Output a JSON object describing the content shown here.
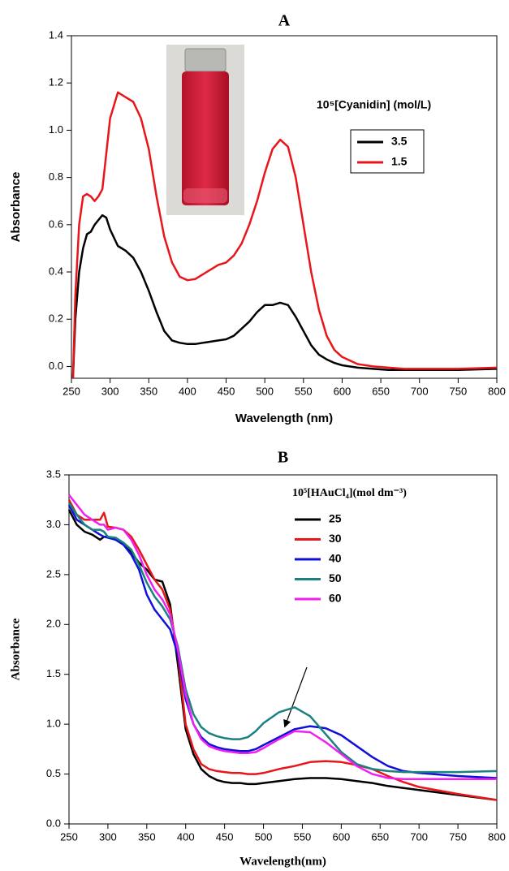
{
  "chart_data": [
    {
      "type": "line",
      "title": "A",
      "x_label": "Wavelength (nm)",
      "y_label": "Absorbance",
      "legend_title": "10⁵[Cyanidin] (mol/L)",
      "xlim": [
        250,
        800
      ],
      "xticks": [
        250,
        300,
        350,
        400,
        450,
        500,
        550,
        600,
        650,
        700,
        750,
        800
      ],
      "ylim": [
        -0.05,
        1.4
      ],
      "yticks": [
        {
          "value": 0,
          "label": "0.0"
        },
        0.2,
        0.4,
        0.6,
        0.8,
        {
          "value": 1,
          "label": "1.0"
        },
        1.2,
        1.4
      ],
      "x": [
        252,
        255,
        260,
        265,
        270,
        275,
        280,
        285,
        290,
        295,
        300,
        310,
        320,
        330,
        340,
        350,
        360,
        370,
        380,
        390,
        400,
        410,
        420,
        430,
        440,
        450,
        460,
        470,
        480,
        490,
        500,
        510,
        520,
        530,
        540,
        550,
        560,
        570,
        580,
        590,
        600,
        620,
        640,
        660,
        680,
        700,
        750,
        800
      ],
      "series": [
        {
          "name": "3.5",
          "color": "#000000",
          "values": [
            -0.05,
            0.2,
            0.4,
            0.5,
            0.56,
            0.57,
            0.6,
            0.62,
            0.64,
            0.63,
            0.58,
            0.51,
            0.49,
            0.46,
            0.4,
            0.32,
            0.23,
            0.15,
            0.11,
            0.1,
            0.095,
            0.095,
            0.1,
            0.105,
            0.11,
            0.115,
            0.13,
            0.16,
            0.19,
            0.23,
            0.26,
            0.26,
            0.27,
            0.26,
            0.21,
            0.15,
            0.09,
            0.05,
            0.03,
            0.015,
            0.005,
            -0.005,
            -0.01,
            -0.015,
            -0.015,
            -0.015,
            -0.015,
            -0.01
          ]
        },
        {
          "name": "1.5",
          "color": "#e8161b",
          "values": [
            -0.05,
            0.3,
            0.6,
            0.72,
            0.73,
            0.72,
            0.7,
            0.72,
            0.75,
            0.9,
            1.05,
            1.16,
            1.14,
            1.12,
            1.05,
            0.92,
            0.72,
            0.55,
            0.44,
            0.38,
            0.365,
            0.37,
            0.39,
            0.41,
            0.43,
            0.44,
            0.47,
            0.52,
            0.6,
            0.7,
            0.82,
            0.92,
            0.96,
            0.93,
            0.8,
            0.6,
            0.4,
            0.24,
            0.13,
            0.07,
            0.04,
            0.01,
            0,
            -0.005,
            -0.01,
            -0.01,
            -0.01,
            -0.005
          ]
        }
      ]
    },
    {
      "type": "line",
      "title": "B",
      "x_label": "Wavelength(nm)",
      "y_label": "Absorbance",
      "legend_title": "10⁵[HAuCl₄](mol dm⁻³)",
      "xlim": [
        250,
        800
      ],
      "xticks": [
        250,
        300,
        350,
        400,
        450,
        500,
        550,
        600,
        650,
        700,
        750,
        800
      ],
      "ylim": [
        0,
        3.5
      ],
      "yticks": [
        {
          "value": 0,
          "label": "0.0"
        },
        0.5,
        {
          "value": 1,
          "label": "1.0"
        },
        1.5,
        {
          "value": 2,
          "label": "2.0"
        },
        2.5,
        {
          "value": 3,
          "label": "3.0"
        },
        3.5
      ],
      "x": [
        250,
        260,
        270,
        280,
        290,
        295,
        300,
        310,
        320,
        330,
        340,
        350,
        360,
        370,
        380,
        390,
        400,
        410,
        420,
        430,
        440,
        450,
        460,
        470,
        480,
        490,
        500,
        520,
        540,
        560,
        580,
        600,
        620,
        640,
        660,
        680,
        700,
        750,
        800
      ],
      "series": [
        {
          "name": "25",
          "color": "#000000",
          "values": [
            3.15,
            3.0,
            2.93,
            2.9,
            2.85,
            2.88,
            2.88,
            2.85,
            2.8,
            2.72,
            2.62,
            2.55,
            2.45,
            2.43,
            2.2,
            1.6,
            0.95,
            0.7,
            0.55,
            0.48,
            0.44,
            0.42,
            0.41,
            0.41,
            0.4,
            0.4,
            0.41,
            0.43,
            0.45,
            0.46,
            0.46,
            0.45,
            0.43,
            0.41,
            0.38,
            0.36,
            0.34,
            0.29,
            0.24
          ]
        },
        {
          "name": "30",
          "color": "#e8161b",
          "values": [
            3.25,
            3.1,
            3.05,
            3.05,
            3.05,
            3.12,
            2.98,
            2.97,
            2.95,
            2.88,
            2.75,
            2.6,
            2.45,
            2.35,
            2.15,
            1.7,
            1.0,
            0.75,
            0.6,
            0.55,
            0.53,
            0.52,
            0.51,
            0.51,
            0.5,
            0.5,
            0.51,
            0.55,
            0.58,
            0.62,
            0.63,
            0.62,
            0.59,
            0.55,
            0.48,
            0.42,
            0.37,
            0.3,
            0.24
          ]
        },
        {
          "name": "40",
          "color": "#1010d8",
          "values": [
            3.2,
            3.05,
            3.0,
            2.95,
            2.9,
            2.88,
            2.87,
            2.85,
            2.8,
            2.7,
            2.55,
            2.3,
            2.15,
            2.05,
            1.95,
            1.7,
            1.25,
            1.0,
            0.87,
            0.8,
            0.77,
            0.75,
            0.74,
            0.73,
            0.73,
            0.75,
            0.79,
            0.87,
            0.95,
            0.98,
            0.96,
            0.89,
            0.78,
            0.67,
            0.58,
            0.53,
            0.51,
            0.48,
            0.46
          ]
        },
        {
          "name": "50",
          "color": "#1a8080",
          "values": [
            3.22,
            3.1,
            3.0,
            2.95,
            2.95,
            2.93,
            2.88,
            2.87,
            2.82,
            2.75,
            2.6,
            2.42,
            2.28,
            2.18,
            2.05,
            1.78,
            1.35,
            1.1,
            0.97,
            0.91,
            0.88,
            0.86,
            0.85,
            0.85,
            0.87,
            0.93,
            1.01,
            1.12,
            1.17,
            1.08,
            0.9,
            0.72,
            0.6,
            0.55,
            0.53,
            0.52,
            0.52,
            0.52,
            0.53
          ]
        },
        {
          "name": "60",
          "color": "#f020f0",
          "values": [
            3.3,
            3.2,
            3.1,
            3.05,
            3.0,
            3.0,
            2.95,
            2.97,
            2.95,
            2.85,
            2.7,
            2.5,
            2.35,
            2.25,
            2.1,
            1.75,
            1.3,
            1.0,
            0.85,
            0.78,
            0.75,
            0.73,
            0.72,
            0.71,
            0.71,
            0.72,
            0.76,
            0.85,
            0.93,
            0.92,
            0.82,
            0.7,
            0.58,
            0.5,
            0.46,
            0.45,
            0.45,
            0.45,
            0.45
          ]
        }
      ]
    }
  ]
}
